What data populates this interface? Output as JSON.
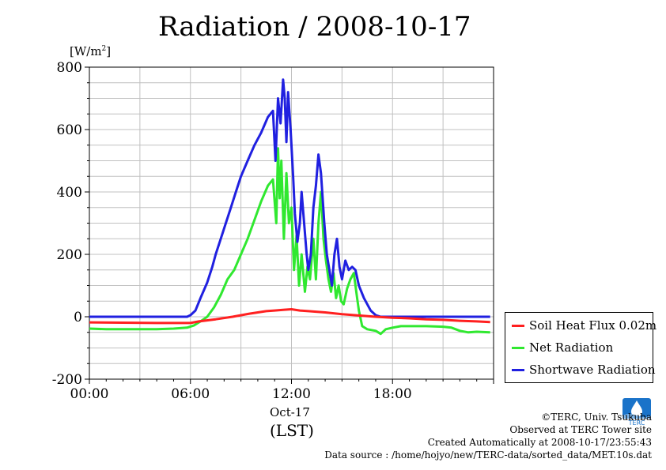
{
  "chart_data": {
    "type": "line",
    "title": "Radiation / 2008-10-17",
    "ylabel_unit": "[W/m",
    "ylabel_unit_sup": "2",
    "ylabel_unit_end": "]",
    "xlabel": "(LST)",
    "x_date_label": "Oct-17",
    "x_range_hours": [
      0,
      24
    ],
    "ylim": [
      -200,
      800
    ],
    "y_ticks": [
      -200,
      0,
      200,
      400,
      600,
      800
    ],
    "x_ticks": [
      {
        "hour": 0,
        "label": "00:00"
      },
      {
        "hour": 6,
        "label": "06:00"
      },
      {
        "hour": 12,
        "label": "12:00"
      },
      {
        "hour": 18,
        "label": "18:00"
      }
    ],
    "grid": true,
    "legend_position": "right",
    "series": [
      {
        "name": "Soil Heat Flux 0.02m",
        "color": "#ff2020",
        "points": [
          [
            0,
            -18
          ],
          [
            2,
            -19
          ],
          [
            4,
            -20
          ],
          [
            6,
            -20
          ],
          [
            6.5,
            -15
          ],
          [
            7.5,
            -8
          ],
          [
            8.5,
            0
          ],
          [
            9.5,
            10
          ],
          [
            10.5,
            18
          ],
          [
            11,
            20
          ],
          [
            11.5,
            22
          ],
          [
            12,
            24
          ],
          [
            12.5,
            20
          ],
          [
            13,
            18
          ],
          [
            14,
            14
          ],
          [
            15,
            8
          ],
          [
            16,
            4
          ],
          [
            17,
            0
          ],
          [
            18,
            -3
          ],
          [
            19,
            -5
          ],
          [
            20,
            -8
          ],
          [
            21,
            -10
          ],
          [
            22,
            -13
          ],
          [
            23,
            -15
          ],
          [
            23.8,
            -17
          ]
        ]
      },
      {
        "name": "Net Radiation",
        "color": "#30e830",
        "points": [
          [
            0,
            -38
          ],
          [
            1,
            -40
          ],
          [
            2,
            -40
          ],
          [
            3,
            -40
          ],
          [
            4,
            -40
          ],
          [
            5,
            -38
          ],
          [
            5.8,
            -35
          ],
          [
            6.2,
            -28
          ],
          [
            6.6,
            -15
          ],
          [
            7,
            0
          ],
          [
            7.4,
            30
          ],
          [
            7.8,
            70
          ],
          [
            8.2,
            120
          ],
          [
            8.6,
            150
          ],
          [
            9,
            200
          ],
          [
            9.4,
            250
          ],
          [
            9.8,
            310
          ],
          [
            10.2,
            370
          ],
          [
            10.6,
            420
          ],
          [
            10.9,
            440
          ],
          [
            11.1,
            300
          ],
          [
            11.2,
            540
          ],
          [
            11.3,
            380
          ],
          [
            11.4,
            500
          ],
          [
            11.55,
            250
          ],
          [
            11.7,
            460
          ],
          [
            11.85,
            300
          ],
          [
            12,
            350
          ],
          [
            12.15,
            150
          ],
          [
            12.3,
            260
          ],
          [
            12.45,
            100
          ],
          [
            12.6,
            200
          ],
          [
            12.8,
            80
          ],
          [
            12.95,
            160
          ],
          [
            13.1,
            120
          ],
          [
            13.3,
            250
          ],
          [
            13.45,
            120
          ],
          [
            13.6,
            300
          ],
          [
            13.75,
            400
          ],
          [
            13.9,
            250
          ],
          [
            14.05,
            180
          ],
          [
            14.2,
            120
          ],
          [
            14.35,
            80
          ],
          [
            14.5,
            140
          ],
          [
            14.65,
            60
          ],
          [
            14.8,
            100
          ],
          [
            14.95,
            50
          ],
          [
            15.1,
            40
          ],
          [
            15.3,
            90
          ],
          [
            15.5,
            120
          ],
          [
            15.7,
            140
          ],
          [
            15.9,
            60
          ],
          [
            16,
            20
          ],
          [
            16.2,
            -30
          ],
          [
            16.5,
            -40
          ],
          [
            17,
            -45
          ],
          [
            17.3,
            -55
          ],
          [
            17.6,
            -40
          ],
          [
            18,
            -35
          ],
          [
            18.5,
            -30
          ],
          [
            19,
            -30
          ],
          [
            20,
            -30
          ],
          [
            21,
            -32
          ],
          [
            21.5,
            -35
          ],
          [
            22,
            -45
          ],
          [
            22.5,
            -50
          ],
          [
            23,
            -48
          ],
          [
            23.8,
            -50
          ]
        ]
      },
      {
        "name": "Shortwave Radiation",
        "color": "#2020e0",
        "points": [
          [
            0,
            0
          ],
          [
            1,
            0
          ],
          [
            2,
            0
          ],
          [
            3,
            0
          ],
          [
            4,
            0
          ],
          [
            5,
            0
          ],
          [
            5.8,
            0
          ],
          [
            6,
            5
          ],
          [
            6.3,
            20
          ],
          [
            6.6,
            60
          ],
          [
            7,
            110
          ],
          [
            7.3,
            160
          ],
          [
            7.5,
            200
          ],
          [
            7.8,
            250
          ],
          [
            8.1,
            300
          ],
          [
            8.4,
            350
          ],
          [
            8.7,
            400
          ],
          [
            9,
            450
          ],
          [
            9.4,
            500
          ],
          [
            9.8,
            550
          ],
          [
            10.2,
            590
          ],
          [
            10.6,
            640
          ],
          [
            10.9,
            660
          ],
          [
            11.05,
            500
          ],
          [
            11.2,
            700
          ],
          [
            11.35,
            620
          ],
          [
            11.5,
            760
          ],
          [
            11.6,
            700
          ],
          [
            11.7,
            560
          ],
          [
            11.8,
            720
          ],
          [
            11.95,
            600
          ],
          [
            12.1,
            450
          ],
          [
            12.2,
            330
          ],
          [
            12.35,
            240
          ],
          [
            12.5,
            300
          ],
          [
            12.6,
            400
          ],
          [
            12.75,
            300
          ],
          [
            12.9,
            200
          ],
          [
            13,
            150
          ],
          [
            13.15,
            200
          ],
          [
            13.3,
            350
          ],
          [
            13.45,
            420
          ],
          [
            13.6,
            520
          ],
          [
            13.75,
            460
          ],
          [
            13.85,
            380
          ],
          [
            13.95,
            300
          ],
          [
            14.1,
            200
          ],
          [
            14.25,
            150
          ],
          [
            14.4,
            100
          ],
          [
            14.55,
            200
          ],
          [
            14.7,
            250
          ],
          [
            14.85,
            160
          ],
          [
            15,
            120
          ],
          [
            15.2,
            180
          ],
          [
            15.4,
            150
          ],
          [
            15.6,
            160
          ],
          [
            15.8,
            150
          ],
          [
            16,
            100
          ],
          [
            16.3,
            60
          ],
          [
            16.7,
            20
          ],
          [
            17,
            5
          ],
          [
            17.3,
            0
          ],
          [
            18,
            0
          ],
          [
            20,
            0
          ],
          [
            22,
            0
          ],
          [
            23.8,
            0
          ]
        ]
      }
    ]
  },
  "credits": {
    "copyright": "©TERC, Univ. Tsukuba",
    "site": "Observed at TERC Tower site",
    "created": "Created Automatically at 2008-10-17/23:55:43",
    "source": "Data source : /home/hojyo/new/TERC-data/sorted_data/MET.10s.dat"
  },
  "logo": {
    "text": "TERC",
    "color": "#1a73c9"
  }
}
